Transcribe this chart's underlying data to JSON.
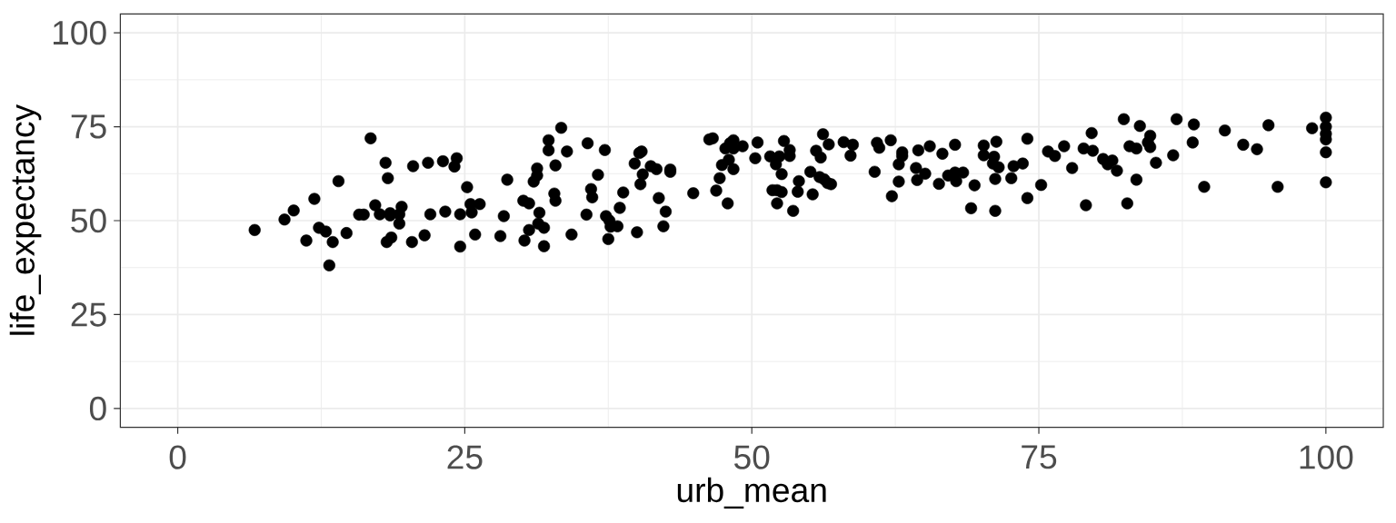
{
  "chart_data": {
    "type": "scatter",
    "xlabel": "urb_mean",
    "ylabel": "life_expectancy",
    "x": [
      6.7,
      9.3,
      10.1,
      11.9,
      14.0,
      16.8,
      12.3,
      12.9,
      11.2,
      13.5,
      13.2,
      14.7,
      15.8,
      16.2,
      17.2,
      17.6,
      18.5,
      18.5,
      19.5,
      19.3,
      19.3,
      18.1,
      18.3,
      20.5,
      21.8,
      22.0,
      18.2,
      18.6,
      20.4,
      21.5,
      23.1,
      24.3,
      24.1,
      23.3,
      24.6,
      24.6,
      25.2,
      25.5,
      25.6,
      26.3,
      25.9,
      28.1,
      28.4,
      28.7,
      30.1,
      30.6,
      30.2,
      30.6,
      31.4,
      31.5,
      31.9,
      31.9,
      31.0,
      31.3,
      31.3,
      32.3,
      32.3,
      33.4,
      33.9,
      32.9,
      32.8,
      32.9,
      34.3,
      35.7,
      37.2,
      36.6,
      36.0,
      36.1,
      35.6,
      37.3,
      37.6,
      37.7,
      38.3,
      37.5,
      38.5,
      38.8,
      40.0,
      39.8,
      40.2,
      40.4,
      40.5,
      40.3,
      41.2,
      41.7,
      42.9,
      42.9,
      41.9,
      42.5,
      42.3,
      44.9,
      46.3,
      46.6,
      47.7,
      48.1,
      48.4,
      48.4,
      49.2,
      47.4,
      48.0,
      48.4,
      47.2,
      46.9,
      47.9,
      50.5,
      50.3,
      51.6,
      52.1,
      52.4,
      53.3,
      53.3,
      52.8,
      52.6,
      51.8,
      52.2,
      52.6,
      52.2,
      53.6,
      54.0,
      54.1,
      55.1,
      55.3,
      56.2,
      56.7,
      55.6,
      56.0,
      55.9,
      56.3,
      56.6,
      56.9,
      58.0,
      58.8,
      58.6,
      60.9,
      61.1,
      62.1,
      60.7,
      63.1,
      63.1,
      62.8,
      62.8,
      62.2,
      64.5,
      64.3,
      65.1,
      64.4,
      65.5,
      66.6,
      67.7,
      66.3,
      67.1,
      67.7,
      67.8,
      68.4,
      69.1,
      69.4,
      70.2,
      70.2,
      71.3,
      71.1,
      71.0,
      71.5,
      71.2,
      71.2,
      72.6,
      72.8,
      73.6,
      74.0,
      74.0,
      75.2,
      75.8,
      76.4,
      77.2,
      77.9,
      78.9,
      79.7,
      79.6,
      79.1,
      80.6,
      81.0,
      81.4,
      81.8,
      82.4,
      82.9,
      83.5,
      83.8,
      84.7,
      84.5,
      84.7,
      85.2,
      83.5,
      82.7,
      86.7,
      87.0,
      88.5,
      88.4,
      89.4,
      91.2,
      92.8,
      94.0,
      95.0,
      95.8,
      98.8,
      100,
      100,
      100,
      100,
      100,
      100
    ],
    "values": [
      47.5,
      50.3,
      52.7,
      55.8,
      60.5,
      71.9,
      48.1,
      47.1,
      44.7,
      44.3,
      38.1,
      46.7,
      51.6,
      51.6,
      54.1,
      51.7,
      52.0,
      51.4,
      53.7,
      49.2,
      51.7,
      65.4,
      61.3,
      64.5,
      65.4,
      51.7,
      44.3,
      45.5,
      44.3,
      46.1,
      65.8,
      66.6,
      64.4,
      52.4,
      51.7,
      43.1,
      58.9,
      54.4,
      52.2,
      54.4,
      46.3,
      45.9,
      51.2,
      60.9,
      55.3,
      54.6,
      44.7,
      47.5,
      49.2,
      52.1,
      48.1,
      43.2,
      60.4,
      62.0,
      63.9,
      71.4,
      68.7,
      74.7,
      68.4,
      64.7,
      57.2,
      55.3,
      46.3,
      70.6,
      68.8,
      62.2,
      58.4,
      56.2,
      51.6,
      51.2,
      50.0,
      48.4,
      48.5,
      45.1,
      53.4,
      57.5,
      46.9,
      65.2,
      68.0,
      68.4,
      62.3,
      59.7,
      64.5,
      63.7,
      63.6,
      63.0,
      56.0,
      52.4,
      48.5,
      57.3,
      71.6,
      71.9,
      69.2,
      70.6,
      71.4,
      69.2,
      69.8,
      64.8,
      66.2,
      63.7,
      61.3,
      58.0,
      54.6,
      70.8,
      66.6,
      67.1,
      65.0,
      67.1,
      68.8,
      67.2,
      71.2,
      62.4,
      58.1,
      58.1,
      57.6,
      54.6,
      52.6,
      57.7,
      60.5,
      63.0,
      57.0,
      73.0,
      70.3,
      68.6,
      66.8,
      61.6,
      61.0,
      60.0,
      59.7,
      70.9,
      70.2,
      67.3,
      70.7,
      69.4,
      71.4,
      63.0,
      68.2,
      67.2,
      65.0,
      60.4,
      56.5,
      68.7,
      64.0,
      62.5,
      60.8,
      69.8,
      67.8,
      70.2,
      59.8,
      62.0,
      62.8,
      60.5,
      62.8,
      53.3,
      59.4,
      70.0,
      67.4,
      71.0,
      67.0,
      65.2,
      64.2,
      61.1,
      52.6,
      61.3,
      64.5,
      65.2,
      71.8,
      56.0,
      59.5,
      68.4,
      67.2,
      69.8,
      64.0,
      69.2,
      68.6,
      73.3,
      54.1,
      66.4,
      65.0,
      66.0,
      63.3,
      77.0,
      69.8,
      69.2,
      75.2,
      72.6,
      70.8,
      69.6,
      65.4,
      60.9,
      54.6,
      67.4,
      77.0,
      75.6,
      70.8,
      59.0,
      74.0,
      70.2,
      69.0,
      75.4,
      59.0,
      74.6,
      77.4,
      75.0,
      73.1,
      71.6,
      68.2,
      60.2
    ],
    "color": "#000000",
    "marker": "circle",
    "xlim": [
      -5,
      105
    ],
    "ylim": [
      -5,
      105
    ],
    "xticks": [
      0,
      25,
      50,
      75,
      100
    ],
    "yticks": [
      0,
      25,
      50,
      75,
      100
    ],
    "grid": true
  }
}
